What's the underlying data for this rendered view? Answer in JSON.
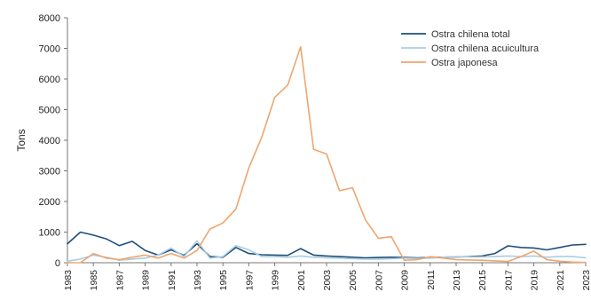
{
  "chart_data": {
    "type": "line",
    "title": "",
    "xlabel": "",
    "ylabel": "Tons",
    "ylim": [
      0,
      8000
    ],
    "yticks": [
      0,
      1000,
      2000,
      3000,
      4000,
      5000,
      6000,
      7000,
      8000
    ],
    "xticks": [
      "1983",
      "1985",
      "1987",
      "1989",
      "1991",
      "1993",
      "1995",
      "1997",
      "1999",
      "2001",
      "2003",
      "2005",
      "2007",
      "2009",
      "2011",
      "2013",
      "2015",
      "2017",
      "2019",
      "2021",
      "2023"
    ],
    "grid": false,
    "legend": "top-right",
    "x": [
      1983,
      1984,
      1985,
      1986,
      1987,
      1988,
      1989,
      1990,
      1991,
      1992,
      1993,
      1994,
      1995,
      1996,
      1997,
      1998,
      1999,
      2000,
      2001,
      2002,
      2003,
      2004,
      2005,
      2006,
      2007,
      2008,
      2009,
      2010,
      2011,
      2012,
      2013,
      2014,
      2015,
      2016,
      2017,
      2018,
      2019,
      2020,
      2021,
      2022,
      2023
    ],
    "series": [
      {
        "name": "Ostra chilena total",
        "color": "#1f4e79",
        "values": [
          620,
          1000,
          900,
          780,
          560,
          700,
          400,
          250,
          420,
          240,
          620,
          200,
          180,
          500,
          300,
          260,
          250,
          240,
          460,
          250,
          220,
          200,
          180,
          160,
          170,
          180,
          170,
          160,
          170,
          180,
          190,
          200,
          220,
          300,
          550,
          500,
          480,
          420,
          500,
          580,
          600
        ]
      },
      {
        "name": "Ostra chilena acuicultura",
        "color": "#a9cde3",
        "values": [
          50,
          120,
          250,
          180,
          80,
          120,
          150,
          250,
          480,
          200,
          720,
          150,
          200,
          560,
          420,
          200,
          200,
          180,
          220,
          180,
          160,
          150,
          130,
          120,
          120,
          130,
          150,
          140,
          150,
          180,
          200,
          190,
          190,
          200,
          220,
          200,
          220,
          180,
          200,
          200,
          160
        ]
      },
      {
        "name": "Ostra japonesa",
        "color": "#f0a56e",
        "values": [
          0,
          0,
          300,
          150,
          100,
          180,
          250,
          150,
          300,
          150,
          400,
          1100,
          1300,
          1750,
          3100,
          4100,
          5400,
          5800,
          7050,
          3700,
          3550,
          2350,
          2450,
          1400,
          800,
          850,
          80,
          100,
          200,
          150,
          100,
          90,
          80,
          60,
          40,
          200,
          380,
          100,
          50,
          20,
          10
        ]
      }
    ]
  }
}
